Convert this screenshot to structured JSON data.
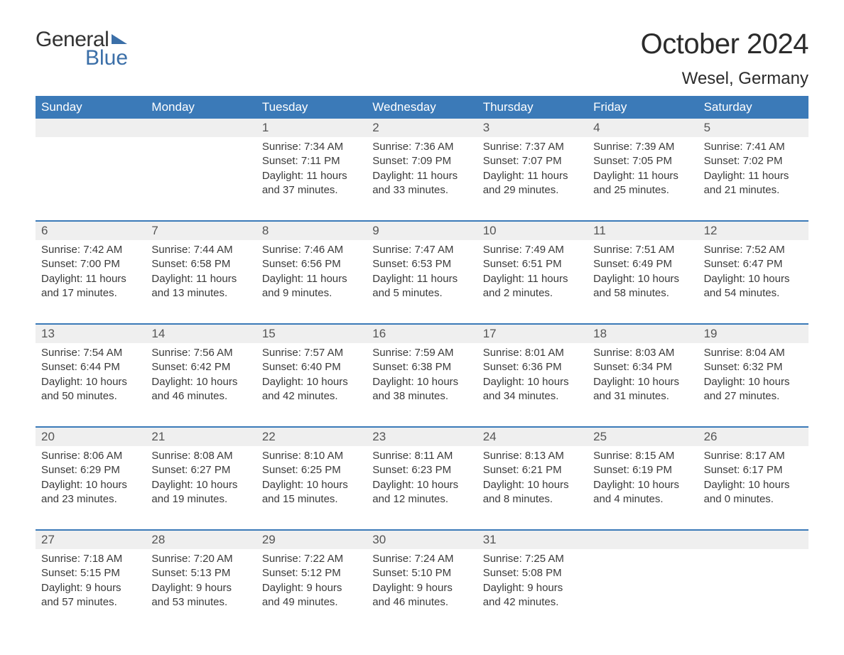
{
  "logo": {
    "text_top": "General",
    "text_bottom": "Blue"
  },
  "title": "October 2024",
  "subtitle": "Wesel, Germany",
  "colors": {
    "header_bg": "#3b7ab8",
    "header_text": "#ffffff",
    "daynum_bg": "#efefef",
    "daynum_text": "#555555",
    "body_text": "#3a3a3a",
    "rule": "#3b7ab8",
    "page_bg": "#ffffff",
    "logo_blue": "#3b6fa8"
  },
  "typography": {
    "title_fontsize": 40,
    "subtitle_fontsize": 24,
    "header_fontsize": 17,
    "daynum_fontsize": 17,
    "body_fontsize": 15,
    "font_family": "Arial"
  },
  "day_headers": [
    "Sunday",
    "Monday",
    "Tuesday",
    "Wednesday",
    "Thursday",
    "Friday",
    "Saturday"
  ],
  "weeks": [
    {
      "nums": [
        "",
        "",
        "1",
        "2",
        "3",
        "4",
        "5"
      ],
      "cells": [
        {
          "sunrise": "",
          "sunset": "",
          "daylight": ""
        },
        {
          "sunrise": "",
          "sunset": "",
          "daylight": ""
        },
        {
          "sunrise": "Sunrise: 7:34 AM",
          "sunset": "Sunset: 7:11 PM",
          "daylight": "Daylight: 11 hours and 37 minutes."
        },
        {
          "sunrise": "Sunrise: 7:36 AM",
          "sunset": "Sunset: 7:09 PM",
          "daylight": "Daylight: 11 hours and 33 minutes."
        },
        {
          "sunrise": "Sunrise: 7:37 AM",
          "sunset": "Sunset: 7:07 PM",
          "daylight": "Daylight: 11 hours and 29 minutes."
        },
        {
          "sunrise": "Sunrise: 7:39 AM",
          "sunset": "Sunset: 7:05 PM",
          "daylight": "Daylight: 11 hours and 25 minutes."
        },
        {
          "sunrise": "Sunrise: 7:41 AM",
          "sunset": "Sunset: 7:02 PM",
          "daylight": "Daylight: 11 hours and 21 minutes."
        }
      ]
    },
    {
      "nums": [
        "6",
        "7",
        "8",
        "9",
        "10",
        "11",
        "12"
      ],
      "cells": [
        {
          "sunrise": "Sunrise: 7:42 AM",
          "sunset": "Sunset: 7:00 PM",
          "daylight": "Daylight: 11 hours and 17 minutes."
        },
        {
          "sunrise": "Sunrise: 7:44 AM",
          "sunset": "Sunset: 6:58 PM",
          "daylight": "Daylight: 11 hours and 13 minutes."
        },
        {
          "sunrise": "Sunrise: 7:46 AM",
          "sunset": "Sunset: 6:56 PM",
          "daylight": "Daylight: 11 hours and 9 minutes."
        },
        {
          "sunrise": "Sunrise: 7:47 AM",
          "sunset": "Sunset: 6:53 PM",
          "daylight": "Daylight: 11 hours and 5 minutes."
        },
        {
          "sunrise": "Sunrise: 7:49 AM",
          "sunset": "Sunset: 6:51 PM",
          "daylight": "Daylight: 11 hours and 2 minutes."
        },
        {
          "sunrise": "Sunrise: 7:51 AM",
          "sunset": "Sunset: 6:49 PM",
          "daylight": "Daylight: 10 hours and 58 minutes."
        },
        {
          "sunrise": "Sunrise: 7:52 AM",
          "sunset": "Sunset: 6:47 PM",
          "daylight": "Daylight: 10 hours and 54 minutes."
        }
      ]
    },
    {
      "nums": [
        "13",
        "14",
        "15",
        "16",
        "17",
        "18",
        "19"
      ],
      "cells": [
        {
          "sunrise": "Sunrise: 7:54 AM",
          "sunset": "Sunset: 6:44 PM",
          "daylight": "Daylight: 10 hours and 50 minutes."
        },
        {
          "sunrise": "Sunrise: 7:56 AM",
          "sunset": "Sunset: 6:42 PM",
          "daylight": "Daylight: 10 hours and 46 minutes."
        },
        {
          "sunrise": "Sunrise: 7:57 AM",
          "sunset": "Sunset: 6:40 PM",
          "daylight": "Daylight: 10 hours and 42 minutes."
        },
        {
          "sunrise": "Sunrise: 7:59 AM",
          "sunset": "Sunset: 6:38 PM",
          "daylight": "Daylight: 10 hours and 38 minutes."
        },
        {
          "sunrise": "Sunrise: 8:01 AM",
          "sunset": "Sunset: 6:36 PM",
          "daylight": "Daylight: 10 hours and 34 minutes."
        },
        {
          "sunrise": "Sunrise: 8:03 AM",
          "sunset": "Sunset: 6:34 PM",
          "daylight": "Daylight: 10 hours and 31 minutes."
        },
        {
          "sunrise": "Sunrise: 8:04 AM",
          "sunset": "Sunset: 6:32 PM",
          "daylight": "Daylight: 10 hours and 27 minutes."
        }
      ]
    },
    {
      "nums": [
        "20",
        "21",
        "22",
        "23",
        "24",
        "25",
        "26"
      ],
      "cells": [
        {
          "sunrise": "Sunrise: 8:06 AM",
          "sunset": "Sunset: 6:29 PM",
          "daylight": "Daylight: 10 hours and 23 minutes."
        },
        {
          "sunrise": "Sunrise: 8:08 AM",
          "sunset": "Sunset: 6:27 PM",
          "daylight": "Daylight: 10 hours and 19 minutes."
        },
        {
          "sunrise": "Sunrise: 8:10 AM",
          "sunset": "Sunset: 6:25 PM",
          "daylight": "Daylight: 10 hours and 15 minutes."
        },
        {
          "sunrise": "Sunrise: 8:11 AM",
          "sunset": "Sunset: 6:23 PM",
          "daylight": "Daylight: 10 hours and 12 minutes."
        },
        {
          "sunrise": "Sunrise: 8:13 AM",
          "sunset": "Sunset: 6:21 PM",
          "daylight": "Daylight: 10 hours and 8 minutes."
        },
        {
          "sunrise": "Sunrise: 8:15 AM",
          "sunset": "Sunset: 6:19 PM",
          "daylight": "Daylight: 10 hours and 4 minutes."
        },
        {
          "sunrise": "Sunrise: 8:17 AM",
          "sunset": "Sunset: 6:17 PM",
          "daylight": "Daylight: 10 hours and 0 minutes."
        }
      ]
    },
    {
      "nums": [
        "27",
        "28",
        "29",
        "30",
        "31",
        "",
        ""
      ],
      "cells": [
        {
          "sunrise": "Sunrise: 7:18 AM",
          "sunset": "Sunset: 5:15 PM",
          "daylight": "Daylight: 9 hours and 57 minutes."
        },
        {
          "sunrise": "Sunrise: 7:20 AM",
          "sunset": "Sunset: 5:13 PM",
          "daylight": "Daylight: 9 hours and 53 minutes."
        },
        {
          "sunrise": "Sunrise: 7:22 AM",
          "sunset": "Sunset: 5:12 PM",
          "daylight": "Daylight: 9 hours and 49 minutes."
        },
        {
          "sunrise": "Sunrise: 7:24 AM",
          "sunset": "Sunset: 5:10 PM",
          "daylight": "Daylight: 9 hours and 46 minutes."
        },
        {
          "sunrise": "Sunrise: 7:25 AM",
          "sunset": "Sunset: 5:08 PM",
          "daylight": "Daylight: 9 hours and 42 minutes."
        },
        {
          "sunrise": "",
          "sunset": "",
          "daylight": ""
        },
        {
          "sunrise": "",
          "sunset": "",
          "daylight": ""
        }
      ]
    }
  ]
}
